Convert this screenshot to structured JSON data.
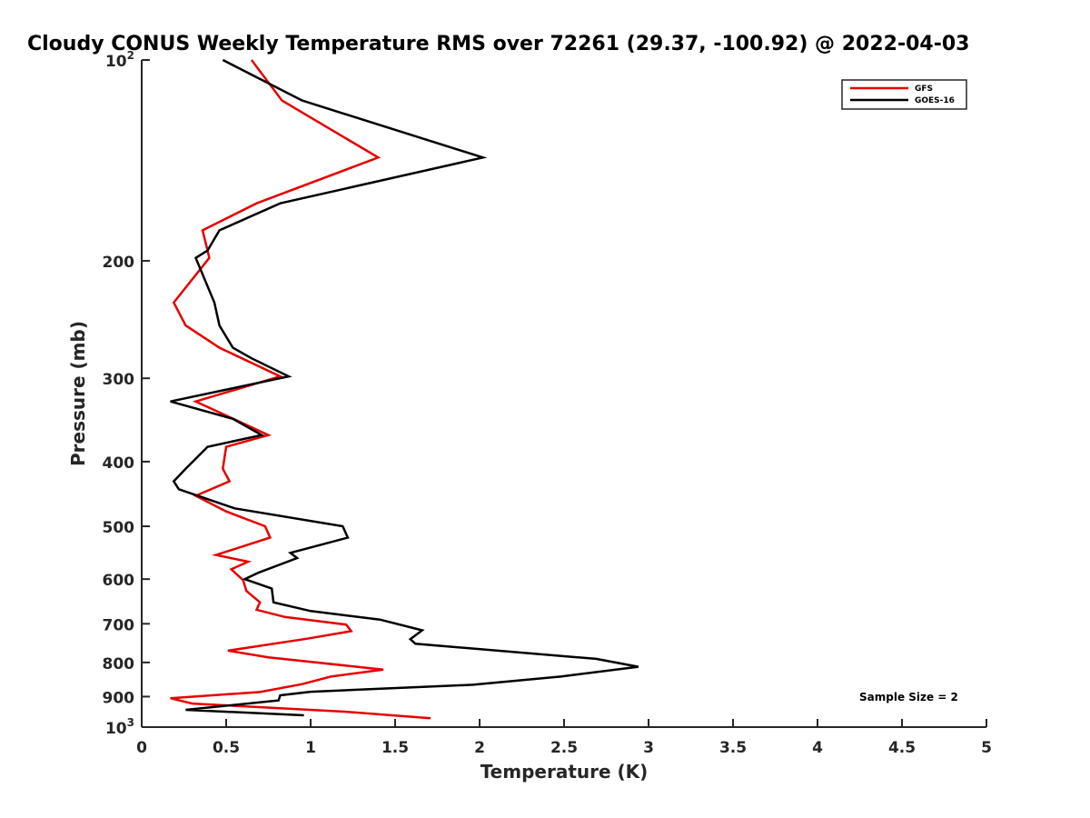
{
  "chart_data": {
    "type": "line",
    "title": "Cloudy CONUS Weekly Temperature RMS over 72261 (29.37, -100.92) @ 2022-04-03",
    "xlabel": "Temperature (K)",
    "ylabel": "Pressure (mb)",
    "xlim": [
      0,
      5
    ],
    "ylim": [
      100,
      1000
    ],
    "y_scale": "log",
    "y_reversed": true,
    "grid": false,
    "legend_position": "top-right",
    "annotation": "Sample Size = 2",
    "x_ticks": [
      {
        "value": 0,
        "label": "0"
      },
      {
        "value": 0.5,
        "label": "0.5"
      },
      {
        "value": 1,
        "label": "1"
      },
      {
        "value": 1.5,
        "label": "1.5"
      },
      {
        "value": 2,
        "label": "2"
      },
      {
        "value": 2.5,
        "label": "2.5"
      },
      {
        "value": 3,
        "label": "3"
      },
      {
        "value": 3.5,
        "label": "3.5"
      },
      {
        "value": 4,
        "label": "4"
      },
      {
        "value": 4.5,
        "label": "4.5"
      },
      {
        "value": 5,
        "label": "5"
      }
    ],
    "y_ticks": [
      {
        "value": 100,
        "label": "10",
        "sup": "2"
      },
      {
        "value": 200,
        "label": "200"
      },
      {
        "value": 300,
        "label": "300"
      },
      {
        "value": 400,
        "label": "400"
      },
      {
        "value": 500,
        "label": "500"
      },
      {
        "value": 600,
        "label": "600"
      },
      {
        "value": 700,
        "label": "700"
      },
      {
        "value": 800,
        "label": "800"
      },
      {
        "value": 900,
        "label": "900"
      },
      {
        "value": 1000,
        "label": "10",
        "sup": "3"
      }
    ],
    "series": [
      {
        "name": "GFS",
        "color": "#e60000",
        "points": [
          [
            0.65,
            100
          ],
          [
            0.83,
            115
          ],
          [
            1.4,
            140
          ],
          [
            0.68,
            164
          ],
          [
            0.36,
            180
          ],
          [
            0.39,
            193
          ],
          [
            0.4,
            198
          ],
          [
            0.19,
            231
          ],
          [
            0.26,
            250
          ],
          [
            0.46,
            270
          ],
          [
            0.82,
            298
          ],
          [
            0.32,
            325
          ],
          [
            0.75,
            365
          ],
          [
            0.5,
            380
          ],
          [
            0.48,
            410
          ],
          [
            0.52,
            428
          ],
          [
            0.32,
            450
          ],
          [
            0.5,
            475
          ],
          [
            0.73,
            500
          ],
          [
            0.76,
            520
          ],
          [
            0.44,
            552
          ],
          [
            0.63,
            565
          ],
          [
            0.53,
            580
          ],
          [
            0.6,
            602
          ],
          [
            0.62,
            625
          ],
          [
            0.7,
            650
          ],
          [
            0.68,
            667
          ],
          [
            0.85,
            684
          ],
          [
            1.21,
            702
          ],
          [
            1.24,
            718
          ],
          [
            0.98,
            737
          ],
          [
            0.51,
            768
          ],
          [
            0.75,
            786
          ],
          [
            1.43,
            820
          ],
          [
            1.12,
            840
          ],
          [
            0.95,
            862
          ],
          [
            0.7,
            886
          ],
          [
            0.17,
            905
          ],
          [
            0.3,
            922
          ],
          [
            1.2,
            948
          ],
          [
            1.71,
            970
          ]
        ]
      },
      {
        "name": "GOES-16",
        "color": "#000000",
        "points": [
          [
            0.48,
            100
          ],
          [
            0.95,
            115
          ],
          [
            2.02,
            140
          ],
          [
            0.82,
            164
          ],
          [
            0.46,
            180
          ],
          [
            0.39,
            193
          ],
          [
            0.32,
            198
          ],
          [
            0.43,
            231
          ],
          [
            0.46,
            250
          ],
          [
            0.54,
            270
          ],
          [
            0.65,
            280
          ],
          [
            0.87,
            298
          ],
          [
            0.17,
            325
          ],
          [
            0.54,
            345
          ],
          [
            0.71,
            365
          ],
          [
            0.39,
            380
          ],
          [
            0.26,
            410
          ],
          [
            0.19,
            428
          ],
          [
            0.22,
            440
          ],
          [
            0.55,
            470
          ],
          [
            1.19,
            500
          ],
          [
            1.22,
            520
          ],
          [
            0.88,
            548
          ],
          [
            0.92,
            558
          ],
          [
            0.69,
            587
          ],
          [
            0.61,
            600
          ],
          [
            0.77,
            620
          ],
          [
            0.78,
            650
          ],
          [
            1.0,
            670
          ],
          [
            1.41,
            690
          ],
          [
            1.66,
            716
          ],
          [
            1.59,
            738
          ],
          [
            1.62,
            750
          ],
          [
            2.69,
            790
          ],
          [
            2.94,
            812
          ],
          [
            2.48,
            840
          ],
          [
            1.96,
            864
          ],
          [
            1.0,
            885
          ],
          [
            0.82,
            896
          ],
          [
            0.81,
            912
          ],
          [
            0.26,
            942
          ],
          [
            0.96,
            960
          ]
        ]
      }
    ]
  }
}
